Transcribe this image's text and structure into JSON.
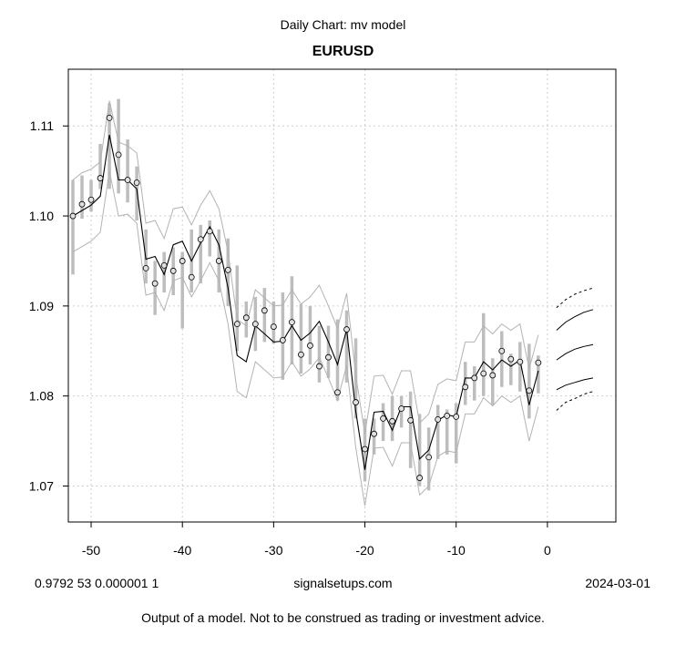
{
  "header": {
    "supertitle": "Daily Chart: mv model",
    "title": "EURUSD"
  },
  "footer": {
    "params": "0.9792 53 0.000001 1",
    "site": "signalsetups.com",
    "date": "2024-03-01",
    "disclaimer": "Output of a model.  Not to be construed as trading or investment advice."
  },
  "chart_data": {
    "type": "line",
    "title": "EURUSD",
    "xlabel": "",
    "ylabel": "",
    "xlim": [
      -52.5,
      7.5
    ],
    "ylim": [
      1.066,
      1.1163
    ],
    "x_ticks": [
      -50,
      -40,
      -30,
      -20,
      -10,
      0
    ],
    "y_ticks": [
      1.07,
      1.08,
      1.09,
      1.1,
      1.11
    ],
    "grid": true,
    "colors": {
      "bars": "#bdbdbd",
      "band": "#b3b3b3",
      "model": "#000000",
      "points": "#000000"
    },
    "x": [
      -52,
      -51,
      -50,
      -49,
      -48,
      -47,
      -46,
      -45,
      -44,
      -43,
      -42,
      -41,
      -40,
      -39,
      -38,
      -37,
      -36,
      -35,
      -34,
      -33,
      -32,
      -31,
      -30,
      -29,
      -28,
      -27,
      -26,
      -25,
      -24,
      -23,
      -22,
      -21,
      -20,
      -19,
      -18,
      -17,
      -16,
      -15,
      -14,
      -13,
      -12,
      -11,
      -10,
      -9,
      -8,
      -7,
      -6,
      -5,
      -4,
      -3,
      -2,
      -1
    ],
    "close": [
      1.1,
      1.1013,
      1.1018,
      1.1042,
      1.1109,
      1.1068,
      1.104,
      1.1037,
      1.0942,
      1.0925,
      1.0945,
      1.0939,
      1.095,
      1.0932,
      1.0974,
      1.0983,
      1.095,
      1.094,
      1.088,
      1.0887,
      1.088,
      1.0895,
      1.0877,
      1.0862,
      1.0882,
      1.0846,
      1.0856,
      1.0833,
      1.0843,
      1.0804,
      1.0874,
      1.0793,
      1.0741,
      1.0758,
      1.0775,
      1.0772,
      1.0786,
      1.0773,
      1.0709,
      1.0732,
      1.0774,
      1.0778,
      1.0777,
      1.081,
      1.082,
      1.0825,
      1.0823,
      1.085,
      1.0841,
      1.0838,
      1.0806,
      1.0837
    ],
    "ranges": [
      [
        1.0935,
        1.104
      ],
      [
        1.0997,
        1.1045
      ],
      [
        1.1005,
        1.104
      ],
      [
        1.103,
        1.108
      ],
      [
        1.103,
        1.1125
      ],
      [
        1.1025,
        1.113
      ],
      [
        1.1015,
        1.1085
      ],
      [
        1.0995,
        1.1055
      ],
      [
        1.0925,
        1.0985
      ],
      [
        1.089,
        1.095
      ],
      [
        1.0915,
        1.096
      ],
      [
        1.0912,
        1.0965
      ],
      [
        1.0875,
        1.096
      ],
      [
        1.0915,
        1.0985
      ],
      [
        1.0925,
        1.099
      ],
      [
        1.0955,
        1.0995
      ],
      [
        1.0915,
        1.0985
      ],
      [
        1.09,
        1.0975
      ],
      [
        1.085,
        1.0945
      ],
      [
        1.0865,
        1.0905
      ],
      [
        1.085,
        1.091
      ],
      [
        1.086,
        1.092
      ],
      [
        1.0858,
        1.0905
      ],
      [
        1.0818,
        1.0915
      ],
      [
        1.0835,
        1.0933
      ],
      [
        1.0825,
        1.0902
      ],
      [
        1.0835,
        1.09
      ],
      [
        1.0815,
        1.0878
      ],
      [
        1.082,
        1.0878
      ],
      [
        1.0795,
        1.0885
      ],
      [
        1.0815,
        1.0895
      ],
      [
        1.0775,
        1.0864
      ],
      [
        1.0705,
        1.0775
      ],
      [
        1.0735,
        1.0775
      ],
      [
        1.075,
        1.0792
      ],
      [
        1.075,
        1.08
      ],
      [
        1.0765,
        1.08
      ],
      [
        1.072,
        1.0805
      ],
      [
        1.07,
        1.078
      ],
      [
        1.0695,
        1.0765
      ],
      [
        1.073,
        1.079
      ],
      [
        1.0735,
        1.0785
      ],
      [
        1.0725,
        1.0792
      ],
      [
        1.079,
        1.0838
      ],
      [
        1.0795,
        1.0833
      ],
      [
        1.08,
        1.0892
      ],
      [
        1.079,
        1.0842
      ],
      [
        1.081,
        1.0872
      ],
      [
        1.0812,
        1.0847
      ],
      [
        1.0805,
        1.086
      ],
      [
        1.0775,
        1.0858
      ],
      [
        1.0803,
        1.0845
      ]
    ],
    "model_line": [
      1.1,
      1.1006,
      1.1012,
      1.1022,
      1.109,
      1.104,
      1.104,
      1.103,
      1.0952,
      1.0955,
      1.0935,
      1.0968,
      1.0972,
      1.095,
      1.097,
      1.0988,
      1.0968,
      1.092,
      1.0845,
      1.0838,
      1.0878,
      1.0869,
      1.086,
      1.0861,
      1.0878,
      1.0862,
      1.087,
      1.0883,
      1.086,
      1.0835,
      1.0874,
      1.0783,
      1.0718,
      1.0782,
      1.0783,
      1.0762,
      1.0788,
      1.0788,
      1.073,
      1.074,
      1.0773,
      1.0779,
      1.0777,
      1.082,
      1.082,
      1.0838,
      1.0829,
      1.084,
      1.0833,
      1.084,
      1.079,
      1.0828
    ],
    "band_upper": [
      1.104,
      1.1048,
      1.1052,
      1.106,
      1.1128,
      1.1082,
      1.1078,
      1.107,
      1.0992,
      1.0995,
      1.0975,
      1.1008,
      1.101,
      1.099,
      1.1012,
      1.1028,
      1.1008,
      1.096,
      1.0885,
      1.0878,
      1.0918,
      1.0909,
      1.09,
      1.0901,
      1.0918,
      1.0902,
      1.091,
      1.0923,
      1.09,
      1.0875,
      1.0914,
      1.0823,
      1.0758,
      1.0822,
      1.0823,
      1.0802,
      1.0828,
      1.0828,
      1.077,
      1.078,
      1.0813,
      1.0819,
      1.0817,
      1.086,
      1.086,
      1.0878,
      1.0869,
      1.088,
      1.0873,
      1.088,
      1.083,
      1.0868
    ],
    "band_lower": [
      1.096,
      1.0966,
      1.0972,
      1.0982,
      1.105,
      1.1,
      1.1002,
      1.0992,
      1.0912,
      1.0915,
      1.0895,
      1.0928,
      1.0932,
      1.091,
      1.0928,
      1.0948,
      1.0928,
      1.088,
      1.0805,
      1.0798,
      1.0838,
      1.0829,
      1.082,
      1.0821,
      1.0838,
      1.0822,
      1.083,
      1.0843,
      1.082,
      1.0795,
      1.0834,
      1.0743,
      1.0678,
      1.0742,
      1.0743,
      1.0722,
      1.0748,
      1.0748,
      1.069,
      1.07,
      1.0733,
      1.0739,
      1.0737,
      1.078,
      1.078,
      1.0798,
      1.0789,
      1.08,
      1.0793,
      1.08,
      1.075,
      1.0788
    ],
    "forecast": {
      "x": [
        1,
        2,
        3,
        4,
        5
      ],
      "center": [
        1.084,
        1.0847,
        1.0852,
        1.0855,
        1.0857
      ],
      "inner_upper": [
        1.0873,
        1.0882,
        1.0888,
        1.0893,
        1.0896
      ],
      "inner_lower": [
        1.0807,
        1.0812,
        1.0815,
        1.0818,
        1.082
      ],
      "outer_upper": [
        1.0898,
        1.0907,
        1.0913,
        1.0917,
        1.092
      ],
      "outer_lower": [
        1.0784,
        1.0793,
        1.0797,
        1.0802,
        1.0805
      ]
    }
  }
}
